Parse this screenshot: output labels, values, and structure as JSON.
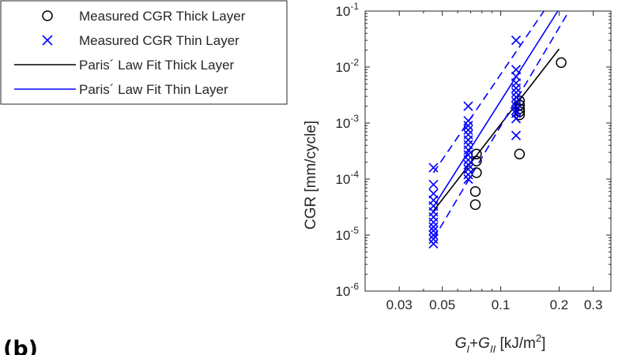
{
  "panel_label": "(b)",
  "chart_data": {
    "type": "scatter",
    "title": "",
    "xlabel": {
      "g1": "G",
      "s1": "I",
      "mid": "+",
      "g2": "G",
      "s2": "II",
      "unit": " [kJ/m",
      "sup": "2",
      "close": "]"
    },
    "ylabel": "CGR [mm/cycle]",
    "xscale": "log",
    "yscale": "log",
    "xlim": [
      0.02,
      0.37
    ],
    "ylim": [
      1e-06,
      0.1
    ],
    "x_ticks": [
      {
        "value": 0.03,
        "label": "0.03"
      },
      {
        "value": 0.05,
        "label": "0.05"
      },
      {
        "value": 0.1,
        "label": "0.1"
      },
      {
        "value": 0.2,
        "label": "0.2"
      },
      {
        "value": 0.3,
        "label": "0.3"
      }
    ],
    "x_minor_ticks": [
      0.04,
      0.06,
      0.07,
      0.08,
      0.09
    ],
    "y_ticks": [
      {
        "value": 1e-06,
        "base": "10",
        "exp": "-6"
      },
      {
        "value": 1e-05,
        "base": "10",
        "exp": "-5"
      },
      {
        "value": 0.0001,
        "base": "10",
        "exp": "-4"
      },
      {
        "value": 0.001,
        "base": "10",
        "exp": "-3"
      },
      {
        "value": 0.01,
        "base": "10",
        "exp": "-2"
      },
      {
        "value": 0.1,
        "base": "10",
        "exp": "-1"
      }
    ],
    "legend": {
      "position": "outside-left",
      "entries": [
        {
          "label": "Measured CGR Thick Layer",
          "marker": "circle",
          "color": "#000000"
        },
        {
          "label": "Measured CGR Thin Layer",
          "marker": "x",
          "color": "#0000ff"
        },
        {
          "label": "Paris´ Law Fit Thick Layer",
          "line": "solid",
          "color": "#000000"
        },
        {
          "label": "Paris´ Law Fit Thin Layer",
          "line": "solid",
          "color": "#0000ff"
        }
      ]
    },
    "series": [
      {
        "name": "Measured CGR Thick Layer",
        "color": "#000000",
        "marker": "circle",
        "points": [
          [
            0.075,
            0.00028
          ],
          [
            0.075,
            0.00021
          ],
          [
            0.075,
            0.00013
          ],
          [
            0.074,
            6e-05
          ],
          [
            0.074,
            3.5e-05
          ],
          [
            0.125,
            0.0025
          ],
          [
            0.125,
            0.0021
          ],
          [
            0.125,
            0.0018
          ],
          [
            0.125,
            0.0016
          ],
          [
            0.125,
            0.0014
          ],
          [
            0.125,
            0.00028
          ],
          [
            0.205,
            0.012
          ]
        ]
      },
      {
        "name": "Measured CGR Thin Layer",
        "color": "#0000ff",
        "marker": "x",
        "points": [
          [
            0.045,
            0.00016
          ],
          [
            0.045,
            8e-05
          ],
          [
            0.045,
            5.5e-05
          ],
          [
            0.045,
            4.2e-05
          ],
          [
            0.045,
            3.3e-05
          ],
          [
            0.045,
            2.6e-05
          ],
          [
            0.045,
            2.1e-05
          ],
          [
            0.045,
            1.7e-05
          ],
          [
            0.045,
            1.4e-05
          ],
          [
            0.045,
            1.2e-05
          ],
          [
            0.045,
            1e-05
          ],
          [
            0.045,
            8.5e-06
          ],
          [
            0.045,
            7e-06
          ],
          [
            0.068,
            0.002
          ],
          [
            0.068,
            0.0011
          ],
          [
            0.068,
            0.0009
          ],
          [
            0.068,
            0.00075
          ],
          [
            0.068,
            0.00062
          ],
          [
            0.068,
            0.0005
          ],
          [
            0.068,
            0.00041
          ],
          [
            0.068,
            0.00033
          ],
          [
            0.068,
            0.00027
          ],
          [
            0.068,
            0.00022
          ],
          [
            0.068,
            0.00018
          ],
          [
            0.068,
            0.00015
          ],
          [
            0.068,
            0.00012
          ],
          [
            0.068,
            0.0001
          ],
          [
            0.12,
            0.03
          ],
          [
            0.12,
            0.009
          ],
          [
            0.12,
            0.0068
          ],
          [
            0.12,
            0.0052
          ],
          [
            0.12,
            0.0042
          ],
          [
            0.12,
            0.0035
          ],
          [
            0.12,
            0.0029
          ],
          [
            0.12,
            0.0024
          ],
          [
            0.12,
            0.002
          ],
          [
            0.12,
            0.0017
          ],
          [
            0.12,
            0.0015
          ],
          [
            0.12,
            0.0012
          ],
          [
            0.12,
            0.0006
          ]
        ]
      },
      {
        "name": "Paris´ Law Fit Thick Layer",
        "color": "#000000",
        "line": "solid",
        "points": [
          [
            0.045,
            2.7e-05
          ],
          [
            0.2,
            0.021
          ]
        ]
      },
      {
        "name": "Paris´ Law Fit Thin Layer",
        "color": "#0000ff",
        "line": "solid",
        "points": [
          [
            0.045,
            3.2e-05
          ],
          [
            0.197,
            0.1
          ]
        ]
      },
      {
        "name": "",
        "color": "#0000ff",
        "line": "dashed",
        "points": [
          [
            0.045,
            0.00013
          ],
          [
            0.167,
            0.1
          ]
        ]
      },
      {
        "name": "",
        "color": "#0000ff",
        "line": "dashed",
        "points": [
          [
            0.045,
            8.5e-06
          ],
          [
            0.225,
            0.1
          ]
        ]
      }
    ]
  }
}
